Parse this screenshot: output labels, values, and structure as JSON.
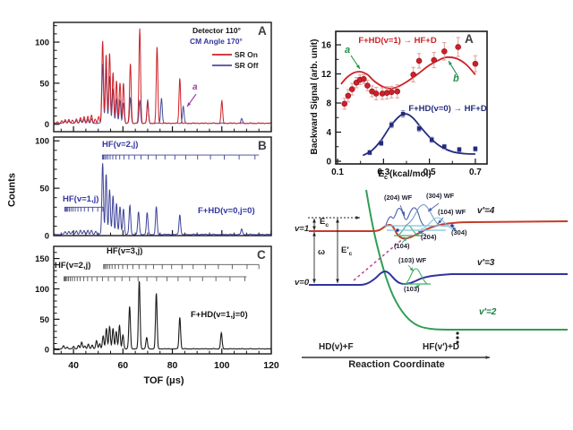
{
  "chart_data": [
    {
      "id": "tof-spectra",
      "type": "line",
      "xlabel": "TOF (μs)",
      "ylabel": "Counts",
      "xlim": [
        32,
        120
      ],
      "x_major_ticks": [
        40,
        60,
        80,
        100,
        120
      ],
      "x_minor_step": 5,
      "panels": [
        {
          "label": "A",
          "ylim": [
            -9,
            124
          ],
          "y_major_ticks": [
            0,
            50,
            100
          ],
          "y_minor_step": 10,
          "legend_line1": "Detector  110°",
          "legend_line2": "CM Angle 170°",
          "annotation": {
            "text": "a",
            "color": "#9a3f9e"
          },
          "series": [
            {
              "name": "SR Off",
              "color": "#4a4d9c",
              "sigma": 0.45,
              "peaks": [
                [
                  36.6,
                  2.5
                ],
                [
                  38.1,
                  3
                ],
                [
                  41.2,
                  3.5
                ],
                [
                  42.8,
                  4
                ],
                [
                  44.3,
                  4.5
                ],
                [
                  45.8,
                  4.5
                ],
                [
                  47.3,
                  5
                ],
                [
                  51.8,
                  72
                ],
                [
                  53.2,
                  68
                ],
                [
                  54.6,
                  58
                ],
                [
                  56.0,
                  42
                ],
                [
                  57.4,
                  29
                ],
                [
                  58.8,
                  27
                ],
                [
                  60.2,
                  25
                ],
                [
                  63.0,
                  31
                ],
                [
                  66.8,
                  28
                ],
                [
                  70.0,
                  28
                ],
                [
                  75.6,
                  31
                ],
                [
                  84.4,
                  21
                ],
                [
                  108,
                  5.5
                ]
              ]
            },
            {
              "name": "SR On",
              "color": "#cc2127",
              "sigma": 0.45,
              "peaks": [
                [
                  33.5,
                  2
                ],
                [
                  35.2,
                  3
                ],
                [
                  36.6,
                  4.5
                ],
                [
                  38.1,
                  5
                ],
                [
                  39.6,
                  4
                ],
                [
                  41.2,
                  5.5
                ],
                [
                  42.8,
                  7
                ],
                [
                  44.3,
                  8
                ],
                [
                  45.8,
                  8.5
                ],
                [
                  47.3,
                  9.5
                ],
                [
                  48.8,
                  5
                ],
                [
                  50.2,
                  8
                ],
                [
                  51.8,
                  100
                ],
                [
                  53.2,
                  84
                ],
                [
                  54.6,
                  86
                ],
                [
                  56.0,
                  62
                ],
                [
                  57.4,
                  52
                ],
                [
                  58.8,
                  49
                ],
                [
                  60.2,
                  49
                ],
                [
                  63.0,
                  73
                ],
                [
                  66.8,
                  115
                ],
                [
                  70.0,
                  25
                ],
                [
                  73.8,
                  93
                ],
                [
                  83.0,
                  55
                ],
                [
                  100.0,
                  27
                ]
              ]
            }
          ]
        },
        {
          "label": "B",
          "ylim": [
            0,
            104
          ],
          "y_major_ticks": [
            0,
            50,
            100
          ],
          "y_minor_step": 10,
          "product_label": "F+HD(v=0,j=0)",
          "combs": [
            {
              "label": "HF(v=2,j)",
              "level": 85,
              "from": 51.5,
              "to": 115,
              "ticks": [
                51.7,
                52.1,
                52.6,
                53.2,
                53.9,
                54.8,
                55.9,
                57.2,
                58.7,
                60.4,
                62.4,
                64.7,
                67.3,
                70.2,
                73.4,
                77.0,
                81.0,
                85.4,
                90.2,
                95.4,
                101.0,
                107.0,
                113.4
              ]
            },
            {
              "label": "HF(v=1,j)",
              "level": 30,
              "from": 36.3,
              "to": 52,
              "ticks": [
                36.5,
                36.8,
                37.2,
                37.7,
                38.3,
                39.0,
                39.8,
                40.7,
                41.8,
                43.0,
                44.4,
                46.0,
                47.8,
                49.8,
                51.9
              ]
            }
          ],
          "series": [
            {
              "color": "#3f4399",
              "sigma": 0.45,
              "peaks": [
                [
                  36.6,
                  3
                ],
                [
                  38.1,
                  3.5
                ],
                [
                  39.6,
                  3
                ],
                [
                  41.2,
                  4
                ],
                [
                  42.8,
                  4.5
                ],
                [
                  44.3,
                  4
                ],
                [
                  45.8,
                  4.5
                ],
                [
                  47.3,
                  4
                ],
                [
                  49,
                  3.5
                ],
                [
                  51.8,
                  75
                ],
                [
                  53.2,
                  64
                ],
                [
                  54.6,
                  48
                ],
                [
                  56.0,
                  41
                ],
                [
                  57.4,
                  33
                ],
                [
                  58.8,
                  29
                ],
                [
                  60.2,
                  27
                ],
                [
                  62.8,
                  31
                ],
                [
                  66.3,
                  24
                ],
                [
                  69.8,
                  23
                ],
                [
                  73.5,
                  29
                ],
                [
                  83.0,
                  21
                ],
                [
                  108,
                  5.5
                ]
              ]
            }
          ]
        },
        {
          "label": "C",
          "ylim": [
            -7,
            170
          ],
          "y_major_ticks": [
            0,
            50,
            100,
            150
          ],
          "y_minor_step": 10,
          "product_label": "F+HD(v=1,j=0)",
          "combs": [
            {
              "label": "HF(v=3,j)",
              "level": 140,
              "from": 52,
              "to": 115,
              "ticks": [
                52.2,
                52.6,
                53.1,
                53.8,
                54.6,
                55.6,
                56.8,
                58.2,
                59.9,
                61.8,
                64.0,
                66.5,
                69.3,
                72.4,
                75.9,
                79.7,
                83.9,
                88.4,
                93.3,
                98.6,
                104.2,
                110.2,
                115.0
              ]
            },
            {
              "label": "HF(v=2,j)",
              "level": 120,
              "from": 36,
              "to": 110,
              "ticks": [
                36.2,
                36.5,
                36.9,
                37.4,
                38.0,
                38.7,
                39.5,
                40.4,
                41.5,
                42.7,
                44.1,
                45.7,
                47.5,
                49.5,
                51.7,
                54.1,
                56.7,
                59.6,
                62.7,
                66.1,
                69.7,
                73.6,
                77.8,
                82.3,
                87.1,
                92.2,
                97.6,
                103.3,
                109.3
              ]
            }
          ],
          "series": [
            {
              "color": "#1b1b1b",
              "sigma": 0.45,
              "peaks": [
                [
                  36.0,
                  5
                ],
                [
                  37.5,
                  3
                ],
                [
                  40.0,
                  4
                ],
                [
                  42.0,
                  6
                ],
                [
                  43.3,
                  11
                ],
                [
                  44.6,
                  5
                ],
                [
                  46.0,
                  8
                ],
                [
                  47.6,
                  6
                ],
                [
                  49.3,
                  14
                ],
                [
                  50.6,
                  8
                ],
                [
                  52.0,
                  21
                ],
                [
                  53.3,
                  34
                ],
                [
                  54.6,
                  37
                ],
                [
                  56.0,
                  34
                ],
                [
                  57.3,
                  29
                ],
                [
                  58.6,
                  38
                ],
                [
                  60.0,
                  23
                ],
                [
                  62.7,
                  70
                ],
                [
                  66.6,
                  112
                ],
                [
                  69.6,
                  19
                ],
                [
                  73.5,
                  91
                ],
                [
                  83.0,
                  52
                ],
                [
                  99.8,
                  26
                ]
              ]
            }
          ]
        }
      ]
    },
    {
      "id": "backward-signal",
      "type": "scatter",
      "panel_label": "A",
      "ylabel": "Backward Signal (arb. unit)",
      "xlabel_main": "E",
      "xlabel_sub": "c",
      "xlabel_unit": "(kcal/mol)",
      "xlim": [
        0.092,
        0.751
      ],
      "ylim": [
        -0.37,
        17.85
      ],
      "x_major_ticks": [
        0.1,
        0.3,
        0.5,
        0.7
      ],
      "x_minor_ticks": [
        0.2,
        0.4,
        0.6
      ],
      "y_major_ticks": [
        0,
        4,
        8,
        12,
        16
      ],
      "y_minor_ticks": [
        2,
        6,
        10,
        14
      ],
      "series": [
        {
          "name": "F+HD(v=1) → HF+D",
          "marker": "circle",
          "color": "#cc2127",
          "err_color": "#e49a9a",
          "points": [
            [
              0.13,
              7.9,
              0.75
            ],
            [
              0.146,
              9.0,
              0.85
            ],
            [
              0.163,
              9.9,
              0.8
            ],
            [
              0.182,
              10.8,
              0.7
            ],
            [
              0.198,
              11.2,
              0.65
            ],
            [
              0.214,
              11.3,
              0.6
            ],
            [
              0.23,
              10.4,
              0.7
            ],
            [
              0.25,
              9.6,
              0.75
            ],
            [
              0.268,
              9.3,
              0.85
            ],
            [
              0.295,
              9.3,
              0.8
            ],
            [
              0.315,
              9.4,
              0.85
            ],
            [
              0.335,
              9.5,
              0.8
            ],
            [
              0.36,
              9.6,
              0.9
            ],
            [
              0.43,
              11.9,
              1.0
            ],
            [
              0.455,
              13.8,
              1.0
            ],
            [
              0.52,
              13.9,
              1.05
            ],
            [
              0.565,
              15.1,
              1.2
            ],
            [
              0.625,
              15.7,
              1.3
            ],
            [
              0.7,
              13.4,
              1.1
            ]
          ],
          "fit": [
            [
              0.115,
              10.6
            ],
            [
              0.14,
              11.5
            ],
            [
              0.17,
              12.15
            ],
            [
              0.2,
              12.3
            ],
            [
              0.23,
              11.9
            ],
            [
              0.26,
              11.0
            ],
            [
              0.3,
              10.2
            ],
            [
              0.33,
              10.0
            ],
            [
              0.36,
              10.2
            ],
            [
              0.4,
              10.9
            ],
            [
              0.45,
              12.0
            ],
            [
              0.5,
              13.2
            ],
            [
              0.55,
              14.05
            ],
            [
              0.58,
              14.3
            ],
            [
              0.62,
              14.1
            ],
            [
              0.66,
              13.3
            ],
            [
              0.7,
              11.9
            ]
          ]
        },
        {
          "name": "F+HD(v=0) → HF+D",
          "marker": "square",
          "color": "#232b7c",
          "err_color": "#8890c8",
          "points": [
            [
              0.24,
              1.2,
              0.3
            ],
            [
              0.29,
              2.5,
              0.35
            ],
            [
              0.335,
              5.0,
              0.4
            ],
            [
              0.385,
              6.5,
              0.45
            ],
            [
              0.455,
              4.5,
              0.4
            ],
            [
              0.51,
              2.95,
              0.35
            ],
            [
              0.565,
              2.0,
              0.3
            ],
            [
              0.63,
              1.6,
              0.3
            ],
            [
              0.7,
              1.7,
              0.3
            ]
          ],
          "fit": [
            [
              0.21,
              0.8
            ],
            [
              0.25,
              1.5
            ],
            [
              0.29,
              2.9
            ],
            [
              0.33,
              4.8
            ],
            [
              0.37,
              6.2
            ],
            [
              0.4,
              6.5
            ],
            [
              0.43,
              5.9
            ],
            [
              0.47,
              4.4
            ],
            [
              0.51,
              3.0
            ],
            [
              0.55,
              2.0
            ],
            [
              0.6,
              1.3
            ],
            [
              0.65,
              1.05
            ],
            [
              0.7,
              1.0
            ]
          ]
        }
      ],
      "annotations": [
        {
          "text": "a",
          "color": "#1f9148"
        },
        {
          "text": "b",
          "color": "#1f9148"
        }
      ]
    }
  ],
  "diagram": {
    "levels_left": [
      {
        "label": "v=1"
      },
      {
        "label": "v=0"
      }
    ],
    "levels_right": [
      {
        "label": "v′=4"
      },
      {
        "label": "v′=3"
      },
      {
        "label": "v′=2"
      }
    ],
    "energy": {
      "ec_main": "E",
      "ec_sub": "c",
      "ecp_main": "E′",
      "ecp_sub": "c",
      "omega": "ω"
    },
    "state_labels": [
      "(204) WF",
      "(304) WF",
      "(104) WF",
      "(304)",
      "(204)",
      "(104)",
      "(103) WF",
      "(103)"
    ],
    "asymptote_left": "HD(v)+F",
    "asymptote_right": "HF(v′)+D",
    "axis_label": "Reaction Coordinate",
    "colors": {
      "red": "#c63b2a",
      "blue": "#31339b",
      "green": "#2f9e53",
      "cyan": "#7cc4e0",
      "steel": "#7b9cc0",
      "navy_wf": "#4a5fae",
      "green_wf": "#3fae68",
      "dashed": "#b2378f",
      "ink": "#222222"
    }
  }
}
